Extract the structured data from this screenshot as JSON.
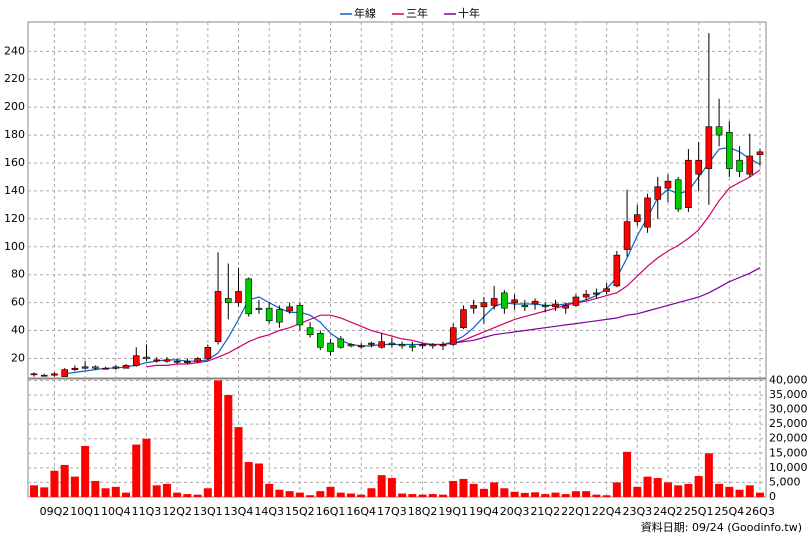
{
  "chart_data": [
    {
      "type": "candlestick",
      "legend": "top",
      "grid": true,
      "up_color": "#ff0000",
      "down_color": "#00cc00",
      "ylim": [
        6,
        261
      ],
      "yticks": [
        20,
        40,
        60,
        80,
        100,
        120,
        140,
        160,
        180,
        200,
        220,
        240
      ],
      "open": [
        9,
        8,
        8,
        7,
        12,
        13,
        14,
        13,
        13,
        13,
        15,
        21,
        19,
        18,
        18,
        17,
        18,
        20,
        32,
        63,
        60,
        77,
        56,
        56,
        55,
        54,
        58,
        42,
        38,
        31,
        34,
        30,
        29,
        30,
        28,
        31,
        30,
        29,
        29,
        30,
        29,
        30,
        42,
        56,
        57,
        58,
        67,
        60,
        58,
        59,
        58,
        57,
        56,
        58,
        64,
        66,
        68,
        72,
        98,
        118,
        114,
        134,
        142,
        148,
        128,
        152,
        156,
        186,
        182,
        162,
        152,
        166
      ],
      "high": [
        10,
        9,
        10,
        13,
        15,
        18,
        15,
        14,
        15,
        16,
        28,
        30,
        21,
        21,
        20,
        20,
        21,
        30,
        96,
        88,
        85,
        78,
        62,
        60,
        58,
        60,
        60,
        46,
        40,
        34,
        36,
        31,
        31,
        32,
        38,
        35,
        32,
        32,
        31,
        31,
        32,
        45,
        58,
        62,
        64,
        72,
        69,
        66,
        62,
        63,
        60,
        62,
        60,
        66,
        69,
        70,
        74,
        97,
        141,
        130,
        138,
        150,
        152,
        150,
        170,
        175,
        253,
        206,
        190,
        172,
        181,
        170
      ],
      "low": [
        7,
        7,
        7,
        7,
        11,
        12,
        12,
        12,
        12,
        13,
        14,
        18,
        17,
        17,
        16,
        16,
        17,
        19,
        30,
        48,
        57,
        50,
        52,
        45,
        42,
        52,
        40,
        35,
        26,
        22,
        27,
        28,
        27,
        28,
        27,
        28,
        27,
        25,
        27,
        27,
        26,
        29,
        41,
        52,
        45,
        55,
        52,
        55,
        54,
        55,
        53,
        54,
        52,
        57,
        62,
        63,
        66,
        71,
        93,
        115,
        110,
        120,
        132,
        125,
        125,
        140,
        130,
        172,
        150,
        150,
        150,
        158
      ],
      "close": [
        9,
        8,
        9,
        12,
        13,
        14,
        13,
        13,
        14,
        15,
        22,
        20,
        19,
        19,
        18,
        18,
        20,
        28,
        68,
        60,
        68,
        52,
        55,
        47,
        46,
        57,
        44,
        37,
        28,
        25,
        28,
        29,
        29,
        31,
        32,
        30,
        29,
        28,
        30,
        29,
        30,
        42,
        55,
        58,
        60,
        63,
        56,
        62,
        57,
        61,
        57,
        59,
        58,
        64,
        66,
        67,
        70,
        94,
        118,
        123,
        135,
        143,
        147,
        127,
        162,
        162,
        186,
        180,
        156,
        154,
        165,
        168
      ],
      "series": [
        {
          "name": "年線",
          "color": "#1060c0",
          "values": [
            null,
            null,
            null,
            9,
            10,
            11,
            12,
            13,
            13,
            14,
            15,
            17,
            18,
            19,
            19,
            18,
            18,
            19,
            24,
            35,
            48,
            62,
            64,
            60,
            56,
            53,
            53,
            51,
            46,
            38,
            33,
            30,
            29,
            29,
            30,
            30,
            30,
            30,
            30,
            30,
            30,
            32,
            36,
            42,
            50,
            57,
            60,
            59,
            59,
            59,
            58,
            58,
            59,
            60,
            62,
            65,
            70,
            78,
            92,
            108,
            121,
            135,
            141,
            138,
            140,
            150,
            160,
            170,
            171,
            168,
            163,
            159
          ]
        },
        {
          "name": "三年",
          "color": "#d0006f",
          "values": [
            null,
            null,
            null,
            null,
            null,
            null,
            null,
            null,
            null,
            null,
            null,
            14,
            15,
            15,
            16,
            16,
            17,
            18,
            21,
            24,
            28,
            32,
            35,
            37,
            40,
            42,
            45,
            48,
            51,
            51,
            49,
            46,
            43,
            40,
            38,
            36,
            34,
            33,
            31,
            30,
            30,
            31,
            33,
            36,
            39,
            42,
            45,
            48,
            50,
            52,
            54,
            56,
            58,
            60,
            61,
            63,
            65,
            67,
            72,
            79,
            86,
            92,
            97,
            101,
            106,
            112,
            122,
            133,
            142,
            146,
            150,
            155
          ]
        },
        {
          "name": "十年",
          "color": "#8000a0",
          "values": [
            null,
            null,
            null,
            null,
            null,
            null,
            null,
            null,
            null,
            null,
            null,
            null,
            null,
            null,
            null,
            null,
            null,
            null,
            null,
            null,
            null,
            null,
            null,
            null,
            null,
            null,
            null,
            null,
            null,
            null,
            null,
            null,
            null,
            null,
            null,
            null,
            null,
            null,
            null,
            null,
            null,
            31,
            32,
            33,
            35,
            37,
            38,
            39,
            40,
            41,
            42,
            43,
            44,
            45,
            46,
            47,
            48,
            49,
            51,
            52,
            54,
            56,
            58,
            60,
            62,
            64,
            67,
            71,
            75,
            78,
            81,
            85
          ]
        }
      ]
    },
    {
      "type": "bar",
      "color": "#ff0000",
      "grid": true,
      "categories": [
        null,
        null,
        "09Q2",
        null,
        null,
        "10Q1",
        null,
        null,
        "10Q4",
        null,
        null,
        "11Q3",
        null,
        null,
        "12Q2",
        null,
        null,
        "13Q1",
        null,
        null,
        "13Q4",
        null,
        null,
        "14Q3",
        null,
        null,
        "15Q2",
        null,
        null,
        "16Q1",
        null,
        null,
        "16Q4",
        null,
        null,
        "17Q3",
        null,
        null,
        "18Q2",
        null,
        null,
        "19Q1",
        null,
        null,
        "19Q4",
        null,
        null,
        "20Q3",
        null,
        null,
        "21Q2",
        null,
        null,
        "22Q1",
        null,
        null,
        "22Q4",
        null,
        null,
        "23Q3",
        null,
        null,
        "24Q2",
        null,
        null,
        "25Q1",
        null,
        null,
        "25Q4",
        null,
        null,
        "26Q3"
      ],
      "values": [
        4000,
        3300,
        9000,
        11000,
        7000,
        17500,
        5500,
        3000,
        3500,
        1500,
        18000,
        20000,
        4000,
        4500,
        1500,
        1000,
        800,
        3000,
        40000,
        35000,
        24000,
        12000,
        11500,
        4500,
        2500,
        2000,
        1500,
        600,
        2000,
        3500,
        1500,
        1200,
        800,
        3000,
        7500,
        6500,
        1200,
        1000,
        800,
        1000,
        800,
        5500,
        6200,
        4500,
        2800,
        5000,
        3000,
        1800,
        1400,
        1600,
        1000,
        1500,
        1000,
        2000,
        2000,
        800,
        600,
        5000,
        15500,
        3500,
        7000,
        6500,
        5000,
        4000,
        4500,
        7200,
        15000,
        4500,
        3500,
        2500,
        4000,
        1500
      ],
      "ylim": [
        0,
        40500
      ],
      "yticks": [
        0,
        {
          "value": 5000,
          "label": "5,000"
        },
        {
          "value": 10000,
          "label": "10,000"
        },
        {
          "value": 15000,
          "label": "15,000"
        },
        {
          "value": 20000,
          "label": "20,000"
        },
        {
          "value": 25000,
          "label": "25,000"
        },
        {
          "value": 30000,
          "label": "30,000"
        },
        {
          "value": 35000,
          "label": "35,000"
        },
        {
          "value": 40000,
          "label": "40,000"
        }
      ]
    }
  ],
  "footer": "資料日期: 09/24 (Goodinfo.tw)"
}
